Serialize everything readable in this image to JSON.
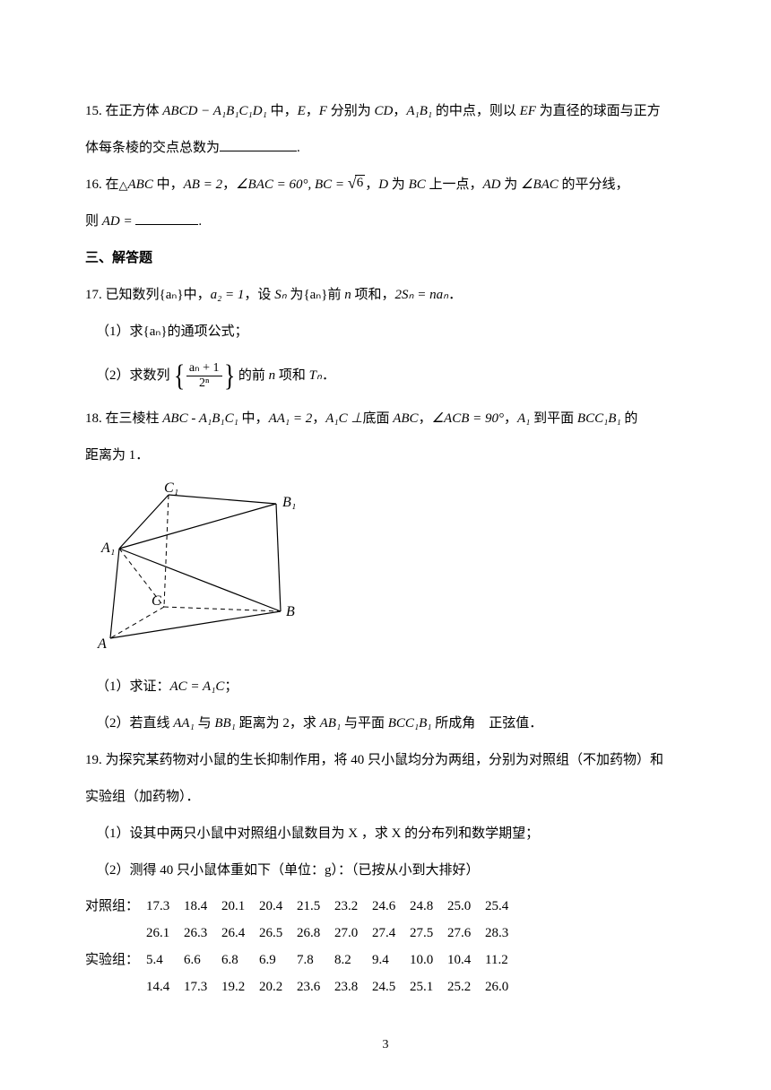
{
  "q15": {
    "num": "15.",
    "t1": "在正方体 ",
    "expr": "ABCD − A₁B₁C₁D₁",
    "t2": " 中，",
    "t3": "E",
    "t4": "，",
    "t5": "F",
    "t6": " 分别为 ",
    "t7": "CD",
    "t8": "，",
    "t9": "A₁B₁",
    "t10": " 的中点，则以 ",
    "t11": "EF",
    "t12": " 为直径的球面与正方",
    "line2a": "体每条棱的交点总数为",
    "blank_w": 86,
    "line2b": "."
  },
  "q16": {
    "num": "16.",
    "t1": "在",
    "tri": "△",
    "t2": "ABC",
    "t3": " 中，",
    "e1": "AB = 2",
    "t4": "，",
    "e2": "∠BAC = 60°,",
    "e3a": "BC = ",
    "sqrt6": "6",
    "t5": "，",
    "t6": "D",
    "t7": " 为 ",
    "t8": "BC",
    "t9": " 上一点，",
    "t10": "AD",
    "t11": " 为 ",
    "t12": "∠BAC",
    "t13": " 的平分线，",
    "line2a": "则 ",
    "e4": "AD = ",
    "blank_w": 70,
    "line2b": "."
  },
  "section": "三、解答题",
  "q17": {
    "num": "17.",
    "t1": "已知数列",
    "seq": "{aₙ}",
    "t2": "中，",
    "e1": "a₂ = 1",
    "t3": "，设 ",
    "sn": "Sₙ",
    "t4": " 为",
    "seq2": "{aₙ}",
    "t5": "前 ",
    "n": "n",
    "t6": " 项和，",
    "e2": "2Sₙ = naₙ",
    "t7": "．",
    "p1a": "（1）求",
    "p1seq": "{aₙ}",
    "p1b": "的通项公式；",
    "p2a": "（2）求数列",
    "frac_num": "aₙ + 1",
    "frac_den": "2ⁿ",
    "p2b": "的前 ",
    "p2n": "n",
    "p2c": " 项和 ",
    "p2T": "Tₙ",
    "p2d": "．"
  },
  "q18": {
    "num": "18.",
    "t1": "在三棱柱 ",
    "e1": "ABC - A₁B₁C₁",
    "t2": " 中，",
    "e2": "AA₁ = 2",
    "t3": "，",
    "e3": "A₁C ⊥",
    "t4": "底面 ",
    "e3b": "ABC",
    "t5": "，",
    "e4": "∠ACB = 90°",
    "t6": "，",
    "e5": "A₁",
    "t7": " 到平面 ",
    "e6": "BCC₁B₁",
    "t8": " 的",
    "line2": "距离为 1．",
    "p1a": "（1）求证：",
    "p1e": "AC = A₁C",
    "p1b": "；",
    "p2a": "（2）若直线 ",
    "p2e1": "AA₁",
    "p2b": " 与 ",
    "p2e2": "BB₁",
    "p2c": " 距离为 2，求 ",
    "p2e3": "AB₁",
    "p2d": " 与平面 ",
    "p2e4": "BCC₁B₁",
    "p2e": " 所成角 正弦值．",
    "labels": {
      "A": "A",
      "B": "B",
      "C": "C",
      "A1": "A₁",
      "B1": "B₁",
      "C1": "C₁"
    }
  },
  "q19": {
    "num": "19.",
    "t1": "为探究某药物对小鼠的生长抑制作用，将 40 只小鼠均分为两组，分别为对照组（不加药物）和",
    "line2": "实验组（加药物）．",
    "p1": "（1）设其中两只小鼠中对照组小鼠数目为 X ，求 X 的分布列和数学期望；",
    "p2": "（2）测得 40 只小鼠体重如下（单位：g）：（已按从小到大排好）",
    "control_label": "对照组：",
    "control_r1": [
      "17.3",
      "18.4",
      "20.1",
      "20.4",
      "21.5",
      "23.2",
      "24.6",
      "24.8",
      "25.0",
      "25.4"
    ],
    "control_r2": [
      "26.1",
      "26.3",
      "26.4",
      "26.5",
      "26.8",
      "27.0",
      "27.4",
      "27.5",
      "27.6",
      "28.3"
    ],
    "exp_label": "实验组：",
    "exp_r1": [
      "5.4",
      "6.6",
      "6.8",
      "6.9",
      "7.8",
      "8.2",
      "9.4",
      "10.0",
      "10.4",
      "11.2"
    ],
    "exp_r2": [
      "14.4",
      "17.3",
      "19.2",
      "20.2",
      "23.6",
      "23.8",
      "24.5",
      "25.1",
      "25.2",
      "26.0"
    ]
  },
  "page_number": "3",
  "style": {
    "bg": "#ffffff",
    "fg": "#000000",
    "font_body": "SimSun",
    "font_math": "Times New Roman",
    "fontsize_body": 15,
    "blank_border": "#000000",
    "prism_stroke": "#000000",
    "prism_dash": "5,4"
  }
}
